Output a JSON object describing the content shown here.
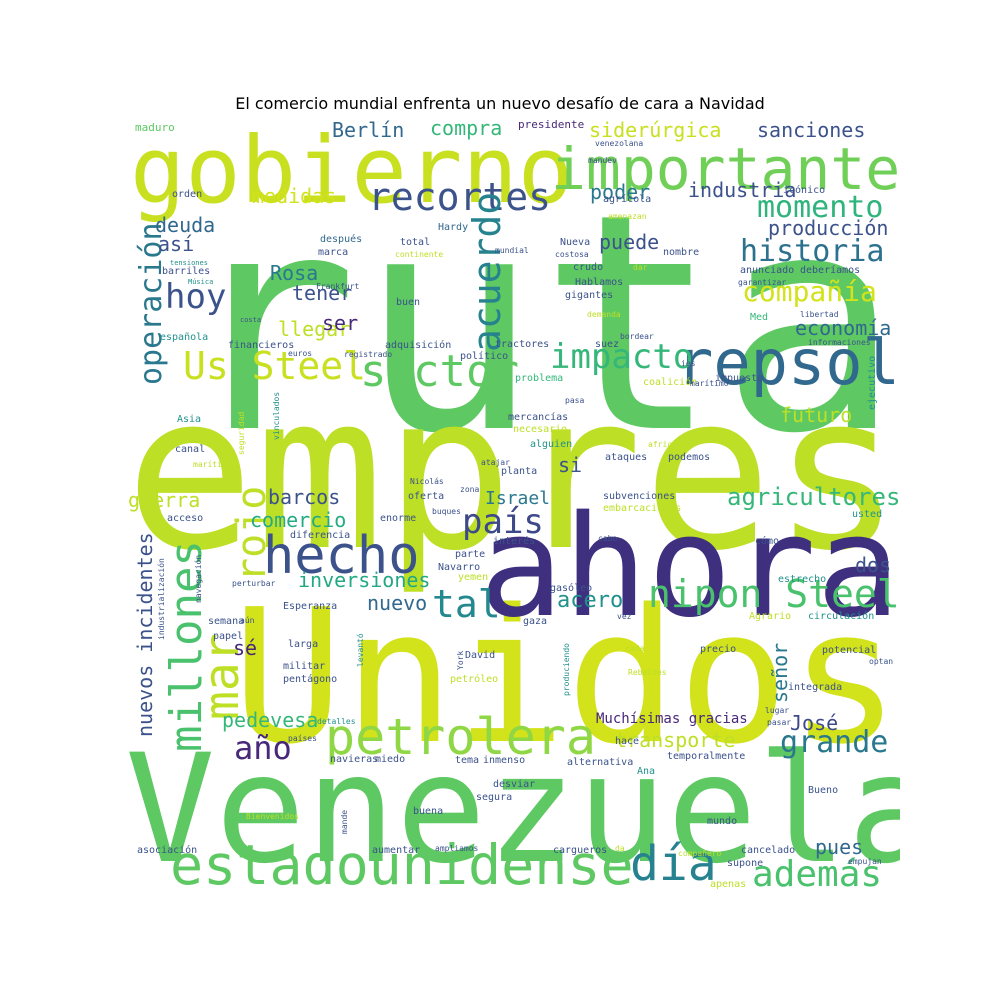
{
  "title": "El comercio mundial enfrenta un nuevo desafío de cara a Navidad",
  "colors": {
    "background": "#ffffff",
    "palette": [
      "#440154",
      "#3b528b",
      "#21918c",
      "#5ec962",
      "#bddf26",
      "#fde725"
    ]
  },
  "words": [
    {
      "text": "ruta",
      "color": "#5ec962"
    },
    {
      "text": "empresa",
      "color": "#bddf26"
    },
    {
      "text": "Unidos",
      "color": "#d2e21b"
    },
    {
      "text": "Venezuela",
      "color": "#5ec962"
    },
    {
      "text": "ahora",
      "color": "#3e2f7f"
    },
    {
      "text": "gobierno",
      "color": "#c8e020"
    },
    {
      "text": "importante",
      "color": "#70cf57"
    },
    {
      "text": "repsol",
      "color": "#31688e"
    },
    {
      "text": "estadounidense",
      "color": "#5ec962"
    },
    {
      "text": "hecho",
      "color": "#3b528b"
    },
    {
      "text": "petrolera",
      "color": "#8fd744"
    },
    {
      "text": "sector",
      "color": "#5ec962"
    },
    {
      "text": "millones",
      "color": "#4ac16d"
    },
    {
      "text": "mar",
      "color": "#bddf26"
    },
    {
      "text": "rojo",
      "color": "#bddf26"
    },
    {
      "text": "nipon Steel",
      "color": "#4ac16d"
    },
    {
      "text": "Us Steel",
      "color": "#c8e020"
    },
    {
      "text": "recortes",
      "color": "#3b528b"
    },
    {
      "text": "impacto",
      "color": "#35b779"
    },
    {
      "text": "historia",
      "color": "#2c728e"
    },
    {
      "text": "compañía",
      "color": "#d2e21b"
    },
    {
      "text": "momento",
      "color": "#2fb47c"
    },
    {
      "text": "día",
      "color": "#26828e"
    },
    {
      "text": "además",
      "color": "#4ac16d"
    },
    {
      "text": "grande",
      "color": "#2a788e"
    },
    {
      "text": "año",
      "color": "#482878"
    },
    {
      "text": "hoy",
      "color": "#3b528b"
    },
    {
      "text": "país",
      "color": "#3e4989"
    },
    {
      "text": "tal",
      "color": "#23898e"
    },
    {
      "text": "acuerdo",
      "color": "#26828e"
    },
    {
      "text": "operación",
      "color": "#2a788e"
    },
    {
      "text": "agricultores",
      "color": "#35b779"
    },
    {
      "text": "nuevos incidentes",
      "color": "#3b528b"
    },
    {
      "text": "inversiones",
      "color": "#22a884"
    },
    {
      "text": "comercio",
      "color": "#25ab82"
    },
    {
      "text": "pedevesa",
      "color": "#35b779"
    },
    {
      "text": "transporte",
      "color": "#bddf26"
    },
    {
      "text": "siderúrgica",
      "color": "#c8e020"
    },
    {
      "text": "sanciones",
      "color": "#3b528b"
    },
    {
      "text": "compra",
      "color": "#35b779"
    },
    {
      "text": "Berlín",
      "color": "#31688e"
    },
    {
      "text": "medidas",
      "color": "#d2e21b"
    },
    {
      "text": "industria",
      "color": "#3b528b"
    },
    {
      "text": "producción",
      "color": "#3b528b"
    },
    {
      "text": "economía",
      "color": "#31688e"
    },
    {
      "text": "futuro",
      "color": "#bddf26"
    },
    {
      "text": "acero",
      "color": "#21918c"
    },
    {
      "text": "nuevo",
      "color": "#31688e"
    },
    {
      "text": "barcos",
      "color": "#3b528b"
    },
    {
      "text": "guerra",
      "color": "#bddf26"
    },
    {
      "text": "Israel",
      "color": "#2a788e"
    },
    {
      "text": "dos",
      "color": "#3b528b"
    },
    {
      "text": "pues",
      "color": "#31688e"
    },
    {
      "text": "señor",
      "color": "#2a788e"
    },
    {
      "text": "José",
      "color": "#3e4989"
    },
    {
      "text": "llegar",
      "color": "#bddf26"
    },
    {
      "text": "tener",
      "color": "#3b528b"
    },
    {
      "text": "ser",
      "color": "#482878"
    },
    {
      "text": "Rosa",
      "color": "#2a788e"
    },
    {
      "text": "deuda",
      "color": "#31688e"
    },
    {
      "text": "así",
      "color": "#3b528b"
    },
    {
      "text": "puede",
      "color": "#3b528b"
    },
    {
      "text": "poder",
      "color": "#2a788e"
    },
    {
      "text": "si",
      "color": "#3b528b"
    },
    {
      "text": "sé",
      "color": "#482878"
    },
    {
      "text": "Muchísimas gracias",
      "color": "#482878"
    },
    {
      "text": "maduro",
      "color": "#5ec962"
    },
    {
      "text": "presidente",
      "color": "#482878"
    },
    {
      "text": "icónico",
      "color": "#3b528b"
    },
    {
      "text": "agrícola",
      "color": "#3b528b"
    },
    {
      "text": "orden",
      "color": "#3b528b"
    },
    {
      "text": "Hardy",
      "color": "#31688e"
    },
    {
      "text": "total",
      "color": "#3b528b"
    },
    {
      "text": "después",
      "color": "#31688e"
    },
    {
      "text": "marca",
      "color": "#3b528b"
    },
    {
      "text": "nombre",
      "color": "#3b528b"
    },
    {
      "text": "Nueva",
      "color": "#3b528b"
    },
    {
      "text": "crudo",
      "color": "#3b528b"
    },
    {
      "text": "Hablamos",
      "color": "#3b528b"
    },
    {
      "text": "gigantes",
      "color": "#3b528b"
    },
    {
      "text": "anunciado",
      "color": "#3b528b"
    },
    {
      "text": "deberíamos",
      "color": "#3b528b"
    },
    {
      "text": "barriles",
      "color": "#3b528b"
    },
    {
      "text": "buen",
      "color": "#3b528b"
    },
    {
      "text": "Med",
      "color": "#35b779"
    },
    {
      "text": "española",
      "color": "#21918c"
    },
    {
      "text": "financieros",
      "color": "#3b528b"
    },
    {
      "text": "adquisición",
      "color": "#3b528b"
    },
    {
      "text": "político",
      "color": "#3b528b"
    },
    {
      "text": "tractores",
      "color": "#3b528b"
    },
    {
      "text": "suez",
      "color": "#3b528b"
    },
    {
      "text": "problema",
      "color": "#35b779"
    },
    {
      "text": "impuesto",
      "color": "#3b528b"
    },
    {
      "text": "coalición",
      "color": "#bddf26"
    },
    {
      "text": "Asia",
      "color": "#21918c"
    },
    {
      "text": "canal",
      "color": "#3b528b"
    },
    {
      "text": "mercancías",
      "color": "#3b528b"
    },
    {
      "text": "necesario",
      "color": "#bddf26"
    },
    {
      "text": "alguien",
      "color": "#21918c"
    },
    {
      "text": "ataques",
      "color": "#3b528b"
    },
    {
      "text": "podemos",
      "color": "#3b528b"
    },
    {
      "text": "planta",
      "color": "#3b528b"
    },
    {
      "text": "ejecutivo",
      "color": "#21918c"
    },
    {
      "text": "oferta",
      "color": "#3b528b"
    },
    {
      "text": "subvenciones",
      "color": "#3b528b"
    },
    {
      "text": "embarcaciones",
      "color": "#bddf26"
    },
    {
      "text": "usted",
      "color": "#21918c"
    },
    {
      "text": "acceso",
      "color": "#3b528b"
    },
    {
      "text": "enorme",
      "color": "#3b528b"
    },
    {
      "text": "diferencia",
      "color": "#3b528b"
    },
    {
      "text": "interés",
      "color": "#3b528b"
    },
    {
      "text": "cómo",
      "color": "#3b528b"
    },
    {
      "text": "parte",
      "color": "#3b528b"
    },
    {
      "text": "Navarro",
      "color": "#3b528b"
    },
    {
      "text": "yemen",
      "color": "#bddf26"
    },
    {
      "text": "gasóleo",
      "color": "#3b528b"
    },
    {
      "text": "estrecho",
      "color": "#21918c"
    },
    {
      "text": "Esperanza",
      "color": "#3b528b"
    },
    {
      "text": "gaza",
      "color": "#3b528b"
    },
    {
      "text": "Agrario",
      "color": "#bddf26"
    },
    {
      "text": "circulación",
      "color": "#21918c"
    },
    {
      "text": "semana",
      "color": "#3b528b"
    },
    {
      "text": "papel",
      "color": "#3b528b"
    },
    {
      "text": "larga",
      "color": "#3b528b"
    },
    {
      "text": "David",
      "color": "#3b528b"
    },
    {
      "text": "precio",
      "color": "#3b528b"
    },
    {
      "text": "potencial",
      "color": "#3b528b"
    },
    {
      "text": "militar",
      "color": "#3b528b"
    },
    {
      "text": "pentágono",
      "color": "#3b528b"
    },
    {
      "text": "petróleo",
      "color": "#bddf26"
    },
    {
      "text": "integrada",
      "color": "#3b528b"
    },
    {
      "text": "hace",
      "color": "#3b528b"
    },
    {
      "text": "temporalmente",
      "color": "#3b528b"
    },
    {
      "text": "alternativa",
      "color": "#3b528b"
    },
    {
      "text": "navieras",
      "color": "#3b528b"
    },
    {
      "text": "miedo",
      "color": "#3b528b"
    },
    {
      "text": "tema",
      "color": "#3b528b"
    },
    {
      "text": "inmenso",
      "color": "#3b528b"
    },
    {
      "text": "Ana",
      "color": "#21918c"
    },
    {
      "text": "desviar",
      "color": "#3b528b"
    },
    {
      "text": "segura",
      "color": "#3b528b"
    },
    {
      "text": "Bueno",
      "color": "#3b528b"
    },
    {
      "text": "buena",
      "color": "#3b528b"
    },
    {
      "text": "mundo",
      "color": "#3b528b"
    },
    {
      "text": "asociación",
      "color": "#3b528b"
    },
    {
      "text": "aumentar",
      "color": "#3b528b"
    },
    {
      "text": "cargueros",
      "color": "#3b528b"
    },
    {
      "text": "cancelado",
      "color": "#3b528b"
    },
    {
      "text": "supone",
      "color": "#3b528b"
    },
    {
      "text": "apenas",
      "color": "#bddf26"
    },
    {
      "text": "empujan",
      "color": "#3b528b"
    },
    {
      "text": "Bienvenidos",
      "color": "#bddf26"
    },
    {
      "text": "ampliamos",
      "color": "#3b528b"
    },
    {
      "text": "compañero",
      "color": "#bddf26"
    },
    {
      "text": "mande",
      "color": "#3b528b"
    },
    {
      "text": "da",
      "color": "#bddf26"
    },
    {
      "text": "venezolana",
      "color": "#3b528b"
    },
    {
      "text": "amenazan",
      "color": "#bddf26"
    },
    {
      "text": "tensiones",
      "color": "#21918c"
    },
    {
      "text": "Música",
      "color": "#21918c"
    },
    {
      "text": "costa",
      "color": "#3b528b"
    },
    {
      "text": "Frankfurt",
      "color": "#3b528b"
    },
    {
      "text": "continente",
      "color": "#bddf26"
    },
    {
      "text": "mundial",
      "color": "#3b528b"
    },
    {
      "text": "costosa",
      "color": "#3b528b"
    },
    {
      "text": "dar",
      "color": "#bddf26"
    },
    {
      "text": "garantizar",
      "color": "#3b528b"
    },
    {
      "text": "libertad",
      "color": "#3b528b"
    },
    {
      "text": "informaciones",
      "color": "#3b528b"
    },
    {
      "text": "demanda",
      "color": "#bddf26"
    },
    {
      "text": "bordear",
      "color": "#3b528b"
    },
    {
      "text": "euros",
      "color": "#3b528b"
    },
    {
      "text": "registrado",
      "color": "#3b528b"
    },
    {
      "text": "ies",
      "color": "#3b528b"
    },
    {
      "text": "marítimo",
      "color": "#3b528b"
    },
    {
      "text": "pasa",
      "color": "#3b528b"
    },
    {
      "text": "seguridad",
      "color": "#bddf26"
    },
    {
      "text": "vinculados",
      "color": "#21918c"
    },
    {
      "text": "marítima",
      "color": "#bddf26"
    },
    {
      "text": "africano",
      "color": "#bddf26"
    },
    {
      "text": "atajar",
      "color": "#3b528b"
    },
    {
      "text": "zona",
      "color": "#3b528b"
    },
    {
      "text": "Nicolás",
      "color": "#3b528b"
    },
    {
      "text": "buques",
      "color": "#3b528b"
    },
    {
      "text": "industrialización",
      "color": "#3b528b"
    },
    {
      "text": "cabo",
      "color": "#3b528b"
    },
    {
      "text": "navegación",
      "color": "#3b528b"
    },
    {
      "text": "perturbar",
      "color": "#3b528b"
    },
    {
      "text": "aún",
      "color": "#3b528b"
    },
    {
      "text": "levantó",
      "color": "#21918c"
    },
    {
      "text": "produciendo",
      "color": "#21918c"
    },
    {
      "text": "York",
      "color": "#3b528b"
    },
    {
      "text": "vez",
      "color": "#3b528b"
    },
    {
      "text": "cada",
      "color": "#bddf26"
    },
    {
      "text": "Rebeldes",
      "color": "#bddf26"
    },
    {
      "text": "optan",
      "color": "#3b528b"
    },
    {
      "text": "lugar",
      "color": "#3b528b"
    },
    {
      "text": "pasar",
      "color": "#3b528b"
    },
    {
      "text": "detalles",
      "color": "#21918c"
    },
    {
      "text": "países",
      "color": "#3b528b"
    },
    {
      "text": "mandev",
      "color": "#3b528b"
    }
  ]
}
